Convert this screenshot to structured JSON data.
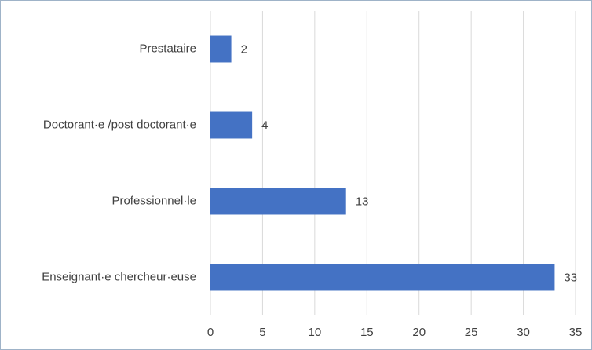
{
  "chart_data": {
    "type": "bar",
    "orientation": "horizontal",
    "categories": [
      "Prestataire",
      "Doctorant·e /post doctorant·e",
      "Professionnel·le",
      "Enseignant·e chercheur·euse"
    ],
    "values": [
      2,
      4,
      13,
      33
    ],
    "color": "#4472c4",
    "xlim": [
      0,
      35
    ],
    "xticks": [
      0,
      5,
      10,
      15,
      20,
      25,
      30,
      35
    ],
    "grid": true
  }
}
